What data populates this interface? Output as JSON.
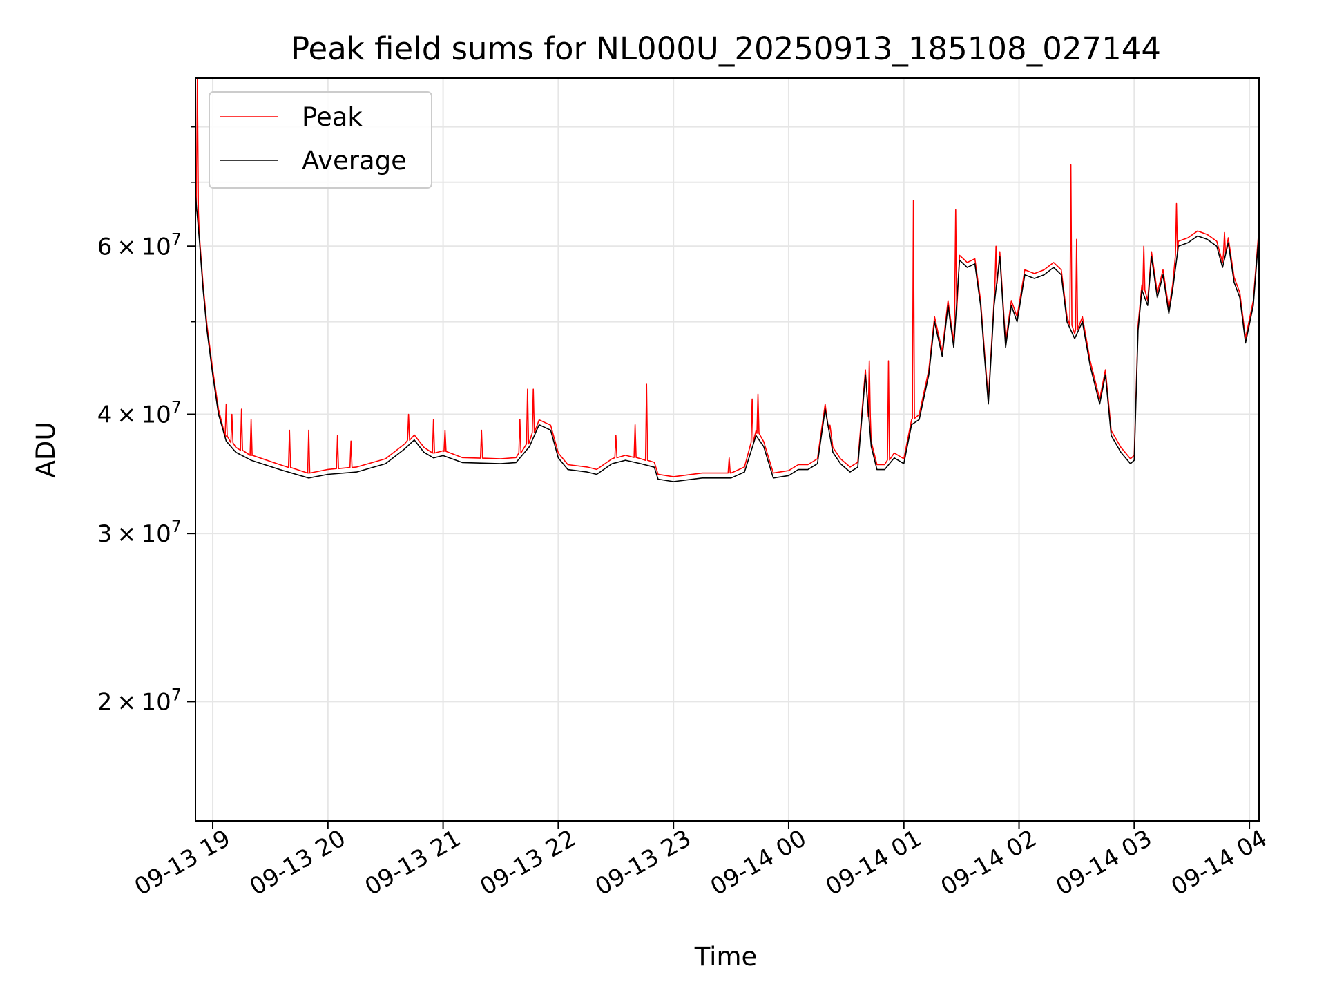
{
  "chart_data": {
    "type": "line",
    "title": "Peak field sums for NL000U_20250913_185108_027144",
    "xlabel": "Time",
    "ylabel": "ADU",
    "y_scale": "log",
    "ylim": [
      15000000,
      90000000
    ],
    "xlim": [
      "2025-09-13 18:51",
      "2025-09-14 04:05"
    ],
    "grid": true,
    "legend_placement": "top-left",
    "x_ticks": [
      {
        "t": "2025-09-13 19:00",
        "label": "09-13 19"
      },
      {
        "t": "2025-09-13 20:00",
        "label": "09-13 20"
      },
      {
        "t": "2025-09-13 21:00",
        "label": "09-13 21"
      },
      {
        "t": "2025-09-13 22:00",
        "label": "09-13 22"
      },
      {
        "t": "2025-09-13 23:00",
        "label": "09-13 23"
      },
      {
        "t": "2025-09-14 00:00",
        "label": "09-14 00"
      },
      {
        "t": "2025-09-14 01:00",
        "label": "09-14 01"
      },
      {
        "t": "2025-09-14 02:00",
        "label": "09-14 02"
      },
      {
        "t": "2025-09-14 03:00",
        "label": "09-14 03"
      },
      {
        "t": "2025-09-14 04:00",
        "label": "09-14 04"
      }
    ],
    "y_ticks": [
      {
        "value": 20000000,
        "mant": "2",
        "exp": "7"
      },
      {
        "value": 30000000,
        "mant": "3",
        "exp": "7"
      },
      {
        "value": 40000000,
        "mant": "4",
        "exp": "7"
      },
      {
        "value": 60000000,
        "mant": "6",
        "exp": "7"
      }
    ],
    "y_minor_ticks": [
      50000000,
      70000000,
      80000000
    ],
    "series": [
      {
        "name": "Average",
        "color": "#000000",
        "points": [
          [
            "2025-09-13 18:51",
            68000000
          ],
          [
            "2025-09-13 18:53",
            61000000
          ],
          [
            "2025-09-13 18:55",
            54000000
          ],
          [
            "2025-09-13 18:57",
            49000000
          ],
          [
            "2025-09-13 19:00",
            44000000
          ],
          [
            "2025-09-13 19:03",
            40000000
          ],
          [
            "2025-09-13 19:07",
            37500000
          ],
          [
            "2025-09-13 19:12",
            36500000
          ],
          [
            "2025-09-13 19:20",
            35800000
          ],
          [
            "2025-09-13 19:35",
            35000000
          ],
          [
            "2025-09-13 19:50",
            34300000
          ],
          [
            "2025-09-13 20:00",
            34600000
          ],
          [
            "2025-09-13 20:15",
            34800000
          ],
          [
            "2025-09-13 20:30",
            35500000
          ],
          [
            "2025-09-13 20:40",
            36800000
          ],
          [
            "2025-09-13 20:45",
            37600000
          ],
          [
            "2025-09-13 20:50",
            36500000
          ],
          [
            "2025-09-13 20:55",
            36000000
          ],
          [
            "2025-09-13 21:00",
            36200000
          ],
          [
            "2025-09-13 21:10",
            35600000
          ],
          [
            "2025-09-13 21:30",
            35500000
          ],
          [
            "2025-09-13 21:38",
            35600000
          ],
          [
            "2025-09-13 21:45",
            37000000
          ],
          [
            "2025-09-13 21:50",
            39000000
          ],
          [
            "2025-09-13 21:56",
            38500000
          ],
          [
            "2025-09-13 22:00",
            36000000
          ],
          [
            "2025-09-13 22:05",
            35000000
          ],
          [
            "2025-09-13 22:15",
            34800000
          ],
          [
            "2025-09-13 22:20",
            34600000
          ],
          [
            "2025-09-13 22:28",
            35500000
          ],
          [
            "2025-09-13 22:35",
            35800000
          ],
          [
            "2025-09-13 22:43",
            35500000
          ],
          [
            "2025-09-13 22:50",
            35200000
          ],
          [
            "2025-09-13 22:52",
            34200000
          ],
          [
            "2025-09-13 23:00",
            34000000
          ],
          [
            "2025-09-13 23:15",
            34300000
          ],
          [
            "2025-09-13 23:30",
            34300000
          ],
          [
            "2025-09-13 23:37",
            34800000
          ],
          [
            "2025-09-13 23:43",
            38000000
          ],
          [
            "2025-09-13 23:47",
            37000000
          ],
          [
            "2025-09-13 23:52",
            34300000
          ],
          [
            "2025-09-14 00:00",
            34500000
          ],
          [
            "2025-09-14 00:05",
            35000000
          ],
          [
            "2025-09-14 00:10",
            35000000
          ],
          [
            "2025-09-14 00:15",
            35500000
          ],
          [
            "2025-09-14 00:19",
            40500000
          ],
          [
            "2025-09-14 00:23",
            36500000
          ],
          [
            "2025-09-14 00:27",
            35500000
          ],
          [
            "2025-09-14 00:32",
            34800000
          ],
          [
            "2025-09-14 00:36",
            35200000
          ],
          [
            "2025-09-14 00:40",
            44000000
          ],
          [
            "2025-09-14 00:43",
            37000000
          ],
          [
            "2025-09-14 00:46",
            35000000
          ],
          [
            "2025-09-14 00:50",
            35000000
          ],
          [
            "2025-09-14 00:55",
            36000000
          ],
          [
            "2025-09-14 01:00",
            35500000
          ],
          [
            "2025-09-14 01:04",
            39000000
          ],
          [
            "2025-09-14 01:08",
            39500000
          ],
          [
            "2025-09-14 01:13",
            44000000
          ],
          [
            "2025-09-14 01:16",
            50000000
          ],
          [
            "2025-09-14 01:20",
            46000000
          ],
          [
            "2025-09-14 01:23",
            52000000
          ],
          [
            "2025-09-14 01:26",
            47000000
          ],
          [
            "2025-09-14 01:29",
            58000000
          ],
          [
            "2025-09-14 01:33",
            57000000
          ],
          [
            "2025-09-14 01:37",
            57500000
          ],
          [
            "2025-09-14 01:40",
            52000000
          ],
          [
            "2025-09-14 01:42",
            46000000
          ],
          [
            "2025-09-14 01:44",
            41000000
          ],
          [
            "2025-09-14 01:47",
            52000000
          ],
          [
            "2025-09-14 01:50",
            58500000
          ],
          [
            "2025-09-14 01:53",
            47000000
          ],
          [
            "2025-09-14 01:56",
            52000000
          ],
          [
            "2025-09-14 01:59",
            50000000
          ],
          [
            "2025-09-14 02:03",
            56000000
          ],
          [
            "2025-09-14 02:08",
            55500000
          ],
          [
            "2025-09-14 02:13",
            56000000
          ],
          [
            "2025-09-14 02:18",
            57000000
          ],
          [
            "2025-09-14 02:22",
            56000000
          ],
          [
            "2025-09-14 02:25",
            50000000
          ],
          [
            "2025-09-14 02:29",
            48000000
          ],
          [
            "2025-09-14 02:33",
            50000000
          ],
          [
            "2025-09-14 02:37",
            45000000
          ],
          [
            "2025-09-14 02:42",
            41000000
          ],
          [
            "2025-09-14 02:45",
            44000000
          ],
          [
            "2025-09-14 02:48",
            38000000
          ],
          [
            "2025-09-14 02:53",
            36500000
          ],
          [
            "2025-09-14 02:58",
            35500000
          ],
          [
            "2025-09-14 03:00",
            35800000
          ],
          [
            "2025-09-14 03:02",
            49000000
          ],
          [
            "2025-09-14 03:04",
            54000000
          ],
          [
            "2025-09-14 03:07",
            52000000
          ],
          [
            "2025-09-14 03:09",
            58500000
          ],
          [
            "2025-09-14 03:12",
            53000000
          ],
          [
            "2025-09-14 03:15",
            56000000
          ],
          [
            "2025-09-14 03:18",
            51000000
          ],
          [
            "2025-09-14 03:20",
            54000000
          ],
          [
            "2025-09-14 03:23",
            60000000
          ],
          [
            "2025-09-14 03:28",
            60500000
          ],
          [
            "2025-09-14 03:33",
            61500000
          ],
          [
            "2025-09-14 03:38",
            61000000
          ],
          [
            "2025-09-14 03:43",
            60000000
          ],
          [
            "2025-09-14 03:46",
            57000000
          ],
          [
            "2025-09-14 03:49",
            60500000
          ],
          [
            "2025-09-14 03:52",
            55000000
          ],
          [
            "2025-09-14 03:55",
            53000000
          ],
          [
            "2025-09-14 03:58",
            47500000
          ],
          [
            "2025-09-14 04:02",
            52000000
          ],
          [
            "2025-09-14 04:05",
            62000000
          ]
        ]
      },
      {
        "name": "Peak",
        "color": "#ff0000",
        "spikes": [
          [
            "2025-09-13 18:52",
            90000000
          ],
          [
            "2025-09-13 19:07",
            41000000
          ],
          [
            "2025-09-13 19:10",
            40000000
          ],
          [
            "2025-09-13 19:15",
            40500000
          ],
          [
            "2025-09-13 19:20",
            39500000
          ],
          [
            "2025-09-13 19:40",
            38500000
          ],
          [
            "2025-09-13 19:50",
            38500000
          ],
          [
            "2025-09-13 20:05",
            38000000
          ],
          [
            "2025-09-13 20:12",
            37500000
          ],
          [
            "2025-09-13 20:42",
            40000000
          ],
          [
            "2025-09-13 20:55",
            39500000
          ],
          [
            "2025-09-13 21:01",
            38500000
          ],
          [
            "2025-09-13 21:20",
            38500000
          ],
          [
            "2025-09-13 21:40",
            39500000
          ],
          [
            "2025-09-13 21:44",
            42500000
          ],
          [
            "2025-09-13 21:47",
            42500000
          ],
          [
            "2025-09-13 22:30",
            38000000
          ],
          [
            "2025-09-13 22:40",
            39000000
          ],
          [
            "2025-09-13 22:46",
            43000000
          ],
          [
            "2025-09-13 23:29",
            36000000
          ],
          [
            "2025-09-13 23:41",
            41500000
          ],
          [
            "2025-09-13 23:44",
            42000000
          ],
          [
            "2025-09-14 00:21",
            38500000
          ],
          [
            "2025-09-14 00:42",
            45500000
          ],
          [
            "2025-09-14 00:52",
            45500000
          ],
          [
            "2025-09-14 01:05",
            67000000
          ],
          [
            "2025-09-14 01:27",
            65500000
          ],
          [
            "2025-09-14 01:48",
            60000000
          ],
          [
            "2025-09-14 02:27",
            73000000
          ],
          [
            "2025-09-14 02:30",
            61000000
          ],
          [
            "2025-09-14 03:05",
            60000000
          ],
          [
            "2025-09-14 03:22",
            66500000
          ],
          [
            "2025-09-14 03:47",
            62000000
          ]
        ]
      }
    ]
  }
}
